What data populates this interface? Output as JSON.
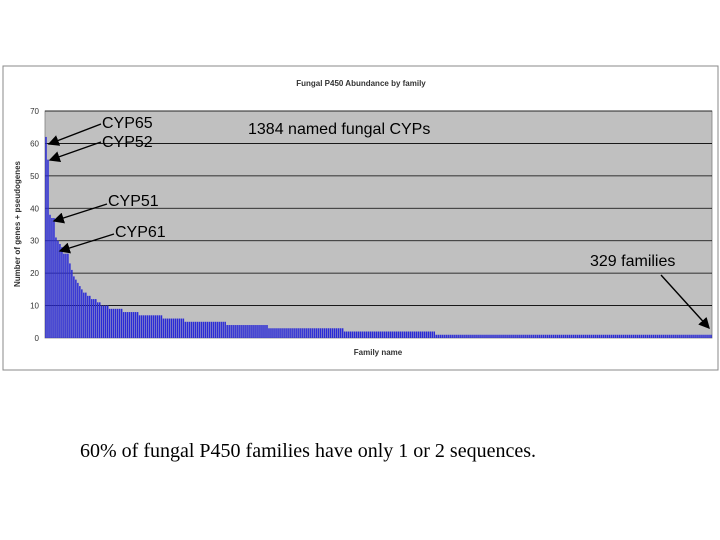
{
  "chart_data": {
    "type": "bar",
    "title": "Fungal P450 Abundance by family",
    "xlabel": "Family name",
    "ylabel": "Number of genes + pseudogenes",
    "ylim": [
      0,
      70
    ],
    "yticks": [
      0,
      10,
      20,
      30,
      40,
      50,
      60,
      70
    ],
    "grid": true,
    "legend": "none",
    "bar_color": "#2b2bd6",
    "plot_background": "#c0c0c0",
    "series": [
      {
        "values": [
          62,
          55,
          38,
          37,
          37,
          31,
          30,
          29,
          28,
          26,
          26,
          26,
          23,
          21,
          19,
          18,
          17,
          16,
          15,
          14,
          14,
          13,
          13,
          12,
          12,
          12,
          11,
          11,
          10,
          10,
          10,
          10,
          9,
          9,
          9,
          9,
          9,
          9,
          9,
          8,
          8,
          8,
          8,
          8,
          8,
          8,
          8,
          7,
          7,
          7,
          7,
          7,
          7,
          7,
          7,
          7,
          7,
          7,
          7,
          6,
          6,
          6,
          6,
          6,
          6,
          6,
          6,
          6,
          6,
          6,
          5,
          5,
          5,
          5,
          5,
          5,
          5,
          5,
          5,
          5,
          5,
          5,
          5,
          5,
          5,
          5,
          5,
          5,
          5,
          5,
          5,
          4,
          4,
          4,
          4,
          4,
          4,
          4,
          4,
          4,
          4,
          4,
          4,
          4,
          4,
          4,
          4,
          4,
          4,
          4,
          4,
          4,
          3,
          3,
          3,
          3,
          3,
          3,
          3,
          3,
          3,
          3,
          3,
          3,
          3,
          3,
          3,
          3,
          3,
          3,
          3,
          3,
          3,
          3,
          3,
          3,
          3,
          3,
          3,
          3,
          3,
          3,
          3,
          3,
          3,
          3,
          3,
          3,
          3,
          3,
          2,
          2,
          2,
          2,
          2,
          2,
          2,
          2,
          2,
          2,
          2,
          2,
          2,
          2,
          2,
          2,
          2,
          2,
          2,
          2,
          2,
          2,
          2,
          2,
          2,
          2,
          2,
          2,
          2,
          2,
          2,
          2,
          2,
          2,
          2,
          2,
          2,
          2,
          2,
          2,
          2,
          2,
          2,
          2,
          2,
          2,
          1,
          1,
          1,
          1,
          1,
          1,
          1,
          1,
          1,
          1,
          1,
          1,
          1,
          1,
          1,
          1,
          1,
          1,
          1,
          1,
          1,
          1,
          1,
          1,
          1,
          1,
          1,
          1,
          1,
          1,
          1,
          1,
          1,
          1,
          1,
          1,
          1,
          1,
          1,
          1,
          1,
          1,
          1,
          1,
          1,
          1,
          1,
          1,
          1,
          1,
          1,
          1,
          1,
          1,
          1,
          1,
          1,
          1,
          1,
          1,
          1,
          1,
          1,
          1,
          1,
          1,
          1,
          1,
          1,
          1,
          1,
          1,
          1,
          1,
          1,
          1,
          1,
          1,
          1,
          1,
          1,
          1,
          1,
          1,
          1,
          1,
          1,
          1,
          1,
          1,
          1,
          1,
          1,
          1,
          1,
          1,
          1,
          1,
          1,
          1,
          1,
          1,
          1,
          1,
          1,
          1,
          1,
          1,
          1,
          1,
          1,
          1,
          1,
          1,
          1,
          1,
          1,
          1,
          1,
          1,
          1,
          1,
          1,
          1,
          1,
          1,
          1,
          1,
          1,
          1,
          1,
          1,
          1,
          1,
          1,
          1,
          1,
          1,
          1
        ]
      }
    ],
    "annotations": {
      "cyp65": "CYP65",
      "cyp52": "CYP52",
      "named": "1384 named fungal CYPs",
      "cyp51": "CYP51",
      "cyp61": "CYP61",
      "families": "329 families"
    }
  },
  "caption": "60% of fungal P450 families have only 1 or 2 sequences."
}
